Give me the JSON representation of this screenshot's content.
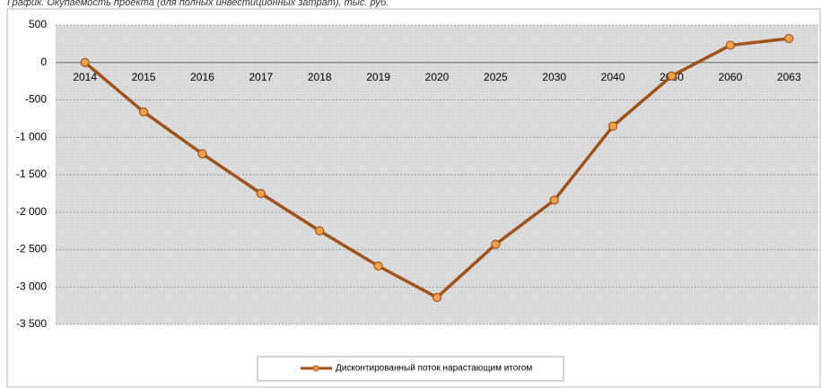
{
  "chart_data": {
    "type": "line",
    "title": "График. Окупаемость проекта (для полных инвестиционных затрат), тыс. руб.",
    "categories": [
      "2014",
      "2015",
      "2016",
      "2017",
      "2018",
      "2019",
      "2020",
      "2025",
      "2030",
      "2040",
      "2050",
      "2060",
      "2063"
    ],
    "series": [
      {
        "name": "Дисконтированный поток нарастающим итогом",
        "color": "#a0521a",
        "marker_color": "#f5a04a",
        "values": [
          0,
          -660,
          -1220,
          -1750,
          -2250,
          -2720,
          -3140,
          -2430,
          -1840,
          -850,
          -180,
          230,
          320
        ]
      }
    ],
    "ylim": [
      -3500,
      500
    ],
    "yticks": [
      500,
      0,
      -500,
      {
        "value": -1000,
        "label": "-1 000"
      },
      {
        "value": -1500,
        "label": "-1 500"
      },
      {
        "value": -2000,
        "label": "-2 000"
      },
      {
        "value": -2500,
        "label": "-2 500"
      },
      {
        "value": -3000,
        "label": "-3 000"
      },
      {
        "value": -3500,
        "label": "-3 500"
      }
    ],
    "grid": true,
    "legend": "bottom"
  }
}
